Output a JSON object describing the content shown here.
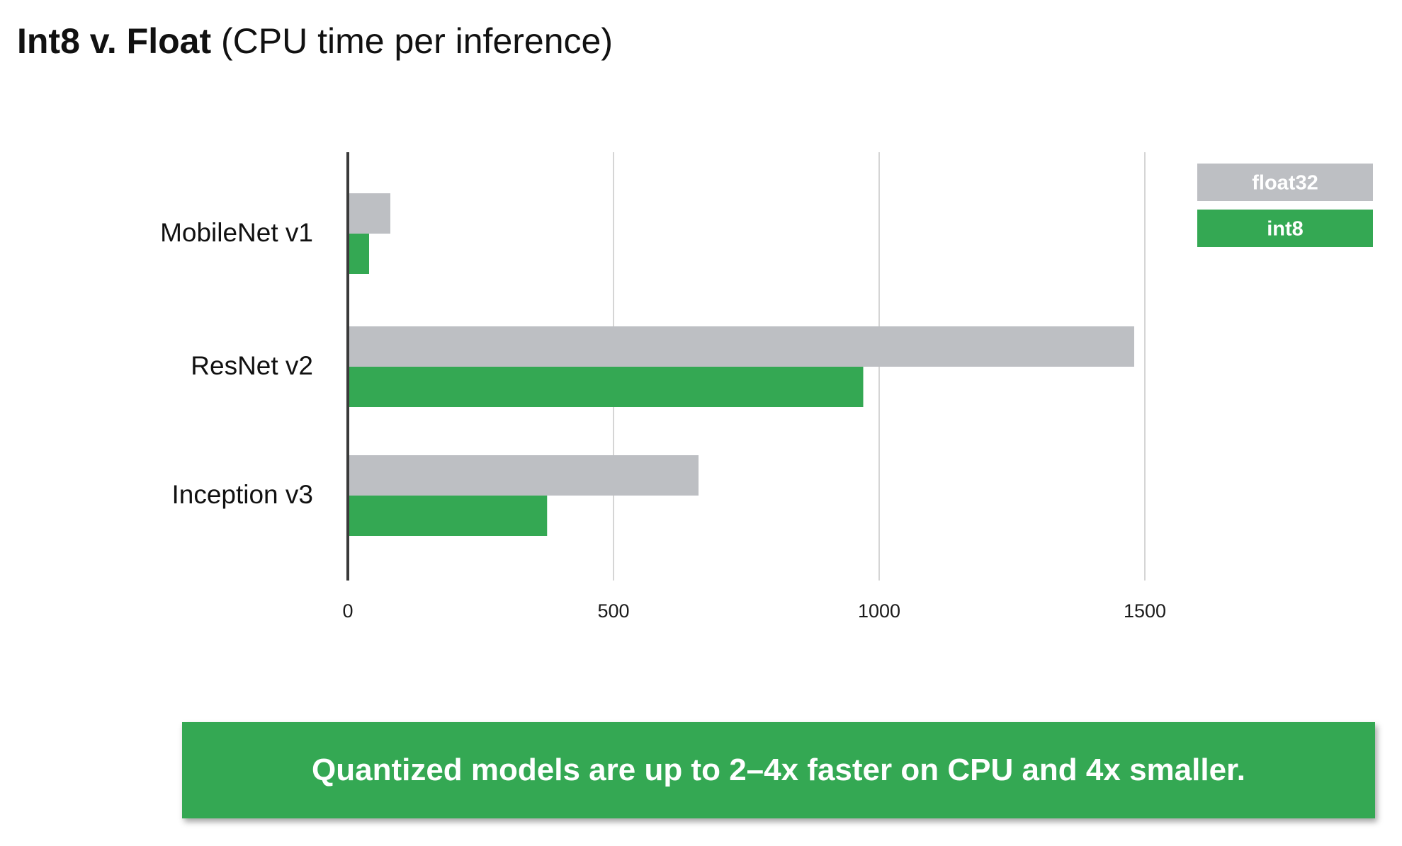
{
  "title": {
    "strong": "Int8 v. Float",
    "light": "(CPU time per inference)"
  },
  "callout": {
    "text": "Quantized models are up to 2–4x faster on CPU and 4x smaller."
  },
  "colors": {
    "float32": "#bdbfc3",
    "int8": "#34a853",
    "axis": "#3a3a3a",
    "grid": "#d5d5d5",
    "callout_bg": "#34a853"
  },
  "chart_data": {
    "type": "bar",
    "orientation": "horizontal",
    "categories": [
      "MobileNet v1",
      "ResNet v2",
      "Inception v3"
    ],
    "series": [
      {
        "name": "float32",
        "values": [
          80,
          1480,
          660
        ]
      },
      {
        "name": "int8",
        "values": [
          40,
          970,
          375
        ]
      }
    ],
    "xlim": [
      0,
      1800
    ],
    "xticks": [
      "0",
      "500",
      "1000",
      "1500"
    ],
    "xtick_values": [
      0,
      500,
      1000,
      1500
    ],
    "grid": true,
    "legend": "top-right"
  }
}
